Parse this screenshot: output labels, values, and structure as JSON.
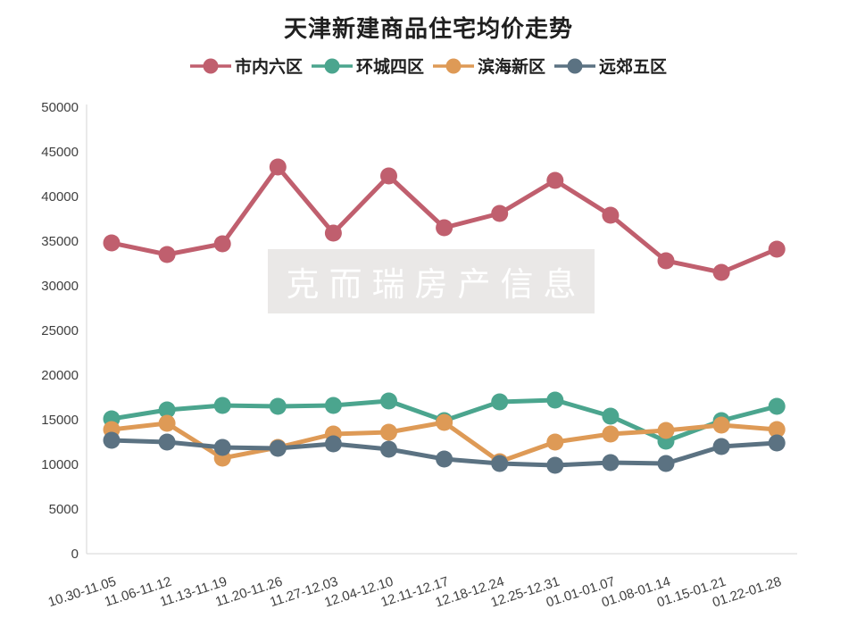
{
  "chart_data": {
    "type": "line",
    "title": "天津新建商品住宅均价走势",
    "watermark": "克而瑞房产信息",
    "categories": [
      "10.30-11.05",
      "11.06-11.12",
      "11.13-11.19",
      "11.20-11.26",
      "11.27-12.03",
      "12.04-12.10",
      "12.11-12.17",
      "12.18-12.24",
      "12.25-12.31",
      "01.01-01.07",
      "01.08-01.14",
      "01.15-01.21",
      "01.22-01.28"
    ],
    "series": [
      {
        "id": "city-six-districts",
        "name": "市内六区",
        "color": "#c05f6e",
        "values": [
          34800,
          33500,
          34700,
          43300,
          35900,
          42300,
          36500,
          38100,
          41800,
          37900,
          32800,
          31500,
          34100
        ]
      },
      {
        "id": "ring-four-districts",
        "name": "环城四区",
        "color": "#4ba58e",
        "values": [
          15100,
          16100,
          16600,
          16500,
          16600,
          17100,
          14900,
          17000,
          17200,
          15400,
          12600,
          14900,
          16500
        ]
      },
      {
        "id": "binhai-new-area",
        "name": "滨海新区",
        "color": "#de9a56",
        "values": [
          13900,
          14600,
          10700,
          11900,
          13400,
          13600,
          14700,
          10300,
          12500,
          13400,
          13800,
          14400,
          13900
        ]
      },
      {
        "id": "outer-five-districts",
        "name": "远郊五区",
        "color": "#5b7282",
        "values": [
          12700,
          12500,
          11900,
          11800,
          12300,
          11700,
          10600,
          10100,
          9900,
          10200,
          10100,
          12000,
          12400
        ]
      }
    ],
    "ylim": [
      0,
      50000
    ],
    "ytick_step": 5000,
    "grid": false,
    "legend_position": "top",
    "axis_color": "#d6d6d6"
  }
}
